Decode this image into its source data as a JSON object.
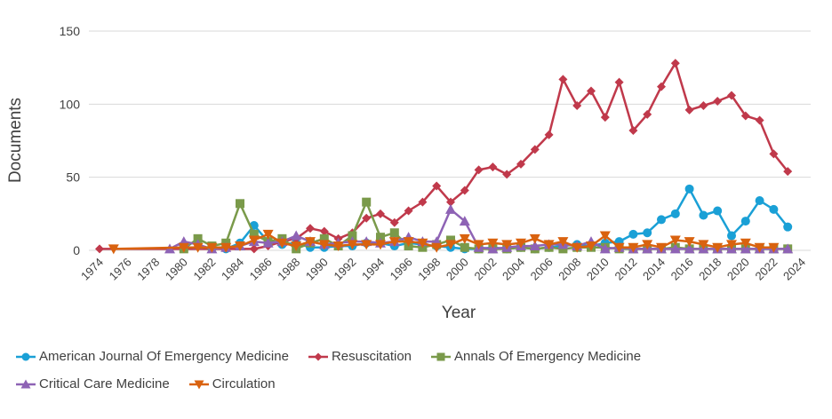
{
  "chart_data": {
    "type": "line",
    "title": "",
    "xlabel": "Year",
    "ylabel": "Documents",
    "xlim": [
      1974,
      2024
    ],
    "ylim": [
      0,
      150
    ],
    "yticks": [
      0,
      50,
      100,
      150
    ],
    "xticks": [
      1974,
      1976,
      1978,
      1980,
      1982,
      1984,
      1986,
      1988,
      1990,
      1992,
      1994,
      1996,
      1998,
      2000,
      2002,
      2004,
      2006,
      2008,
      2010,
      2012,
      2014,
      2016,
      2018,
      2020,
      2022,
      2024
    ],
    "grid": "horizontal",
    "legend_position": "bottom",
    "series": [
      {
        "name": "American Journal Of Emergency Medicine",
        "color": "#1aa0d6",
        "marker": "circle",
        "x": [
          1983,
          1984,
          1985,
          1986,
          1987,
          1988,
          1989,
          1990,
          1991,
          1992,
          1993,
          1994,
          1995,
          1996,
          1997,
          1998,
          1999,
          2000,
          2001,
          2002,
          2003,
          2004,
          2005,
          2006,
          2007,
          2008,
          2009,
          2010,
          2011,
          2012,
          2013,
          2014,
          2015,
          2016,
          2017,
          2018,
          2019,
          2020,
          2021,
          2022,
          2023
        ],
        "values": [
          1,
          5,
          17,
          6,
          4,
          5,
          2,
          2,
          3,
          3,
          5,
          5,
          3,
          5,
          4,
          3,
          2,
          1,
          1,
          2,
          1,
          2,
          1,
          2,
          3,
          4,
          3,
          5,
          6,
          11,
          12,
          21,
          25,
          42,
          24,
          27,
          10,
          20,
          34,
          28,
          16
        ]
      },
      {
        "name": "Resuscitation",
        "color": "#c0394b",
        "marker": "diamond",
        "x": [
          1974,
          1985,
          1986,
          1987,
          1988,
          1989,
          1990,
          1991,
          1992,
          1993,
          1994,
          1995,
          1996,
          1997,
          1998,
          1999,
          2000,
          2001,
          2002,
          2003,
          2004,
          2005,
          2006,
          2007,
          2008,
          2009,
          2010,
          2011,
          2012,
          2013,
          2014,
          2015,
          2016,
          2017,
          2018,
          2019,
          2020,
          2021,
          2022,
          2023
        ],
        "values": [
          1,
          1,
          3,
          6,
          8,
          15,
          13,
          8,
          12,
          22,
          25,
          19,
          27,
          33,
          44,
          33,
          41,
          55,
          57,
          52,
          59,
          69,
          79,
          117,
          99,
          109,
          91,
          115,
          82,
          93,
          112,
          128,
          96,
          99,
          102,
          106,
          92,
          89,
          66,
          54
        ]
      },
      {
        "name": "Annals Of Emergency Medicine",
        "color": "#7a9a4a",
        "marker": "square",
        "x": [
          1980,
          1981,
          1982,
          1983,
          1984,
          1985,
          1986,
          1987,
          1988,
          1989,
          1990,
          1991,
          1992,
          1993,
          1994,
          1995,
          1996,
          1997,
          1998,
          1999,
          2000,
          2001,
          2002,
          2003,
          2004,
          2005,
          2006,
          2007,
          2008,
          2009,
          2010,
          2011,
          2012,
          2013,
          2014,
          2015,
          2016,
          2017,
          2018,
          2019,
          2020,
          2021,
          2022,
          2023
        ],
        "values": [
          1,
          8,
          3,
          5,
          32,
          11,
          6,
          8,
          1,
          5,
          8,
          3,
          10,
          33,
          9,
          12,
          3,
          2,
          4,
          7,
          2,
          1,
          1,
          1,
          2,
          1,
          2,
          1,
          2,
          2,
          2,
          1,
          1,
          1,
          1,
          2,
          1,
          1,
          1,
          1,
          1,
          1,
          1,
          1
        ]
      },
      {
        "name": "Critical Care Medicine",
        "color": "#8e63b5",
        "marker": "triangle-up",
        "x": [
          1979,
          1980,
          1981,
          1982,
          1983,
          1984,
          1985,
          1986,
          1987,
          1988,
          1989,
          1990,
          1991,
          1992,
          1993,
          1994,
          1995,
          1996,
          1997,
          1998,
          1999,
          2000,
          2001,
          2002,
          2003,
          2004,
          2005,
          2006,
          2007,
          2008,
          2009,
          2010,
          2011,
          2012,
          2013,
          2014,
          2015,
          2016,
          2017,
          2018,
          2019,
          2020,
          2021,
          2022,
          2023
        ],
        "values": [
          1,
          6,
          4,
          1,
          2,
          3,
          6,
          5,
          6,
          10,
          6,
          4,
          5,
          6,
          6,
          5,
          6,
          9,
          6,
          6,
          28,
          20,
          2,
          1,
          2,
          3,
          3,
          4,
          4,
          3,
          6,
          1,
          2,
          1,
          1,
          1,
          1,
          1,
          1,
          1,
          1,
          1,
          1,
          1,
          1
        ]
      },
      {
        "name": "Circulation",
        "color": "#d9620f",
        "marker": "triangle-down",
        "x": [
          1975,
          1980,
          1981,
          1982,
          1983,
          1984,
          1985,
          1986,
          1987,
          1988,
          1989,
          1990,
          1991,
          1992,
          1993,
          1994,
          1995,
          1996,
          1997,
          1998,
          1999,
          2000,
          2001,
          2002,
          2003,
          2004,
          2005,
          2006,
          2007,
          2008,
          2009,
          2010,
          2011,
          2012,
          2013,
          2014,
          2015,
          2016,
          2017,
          2018,
          2019,
          2020,
          2021,
          2022
        ],
        "values": [
          1,
          2,
          2,
          2,
          2,
          3,
          7,
          11,
          5,
          3,
          6,
          4,
          3,
          4,
          4,
          4,
          6,
          6,
          5,
          2,
          4,
          8,
          4,
          5,
          4,
          5,
          8,
          4,
          6,
          2,
          3,
          10,
          2,
          2,
          4,
          2,
          7,
          6,
          4,
          2,
          4,
          5,
          2,
          2
        ]
      }
    ]
  }
}
